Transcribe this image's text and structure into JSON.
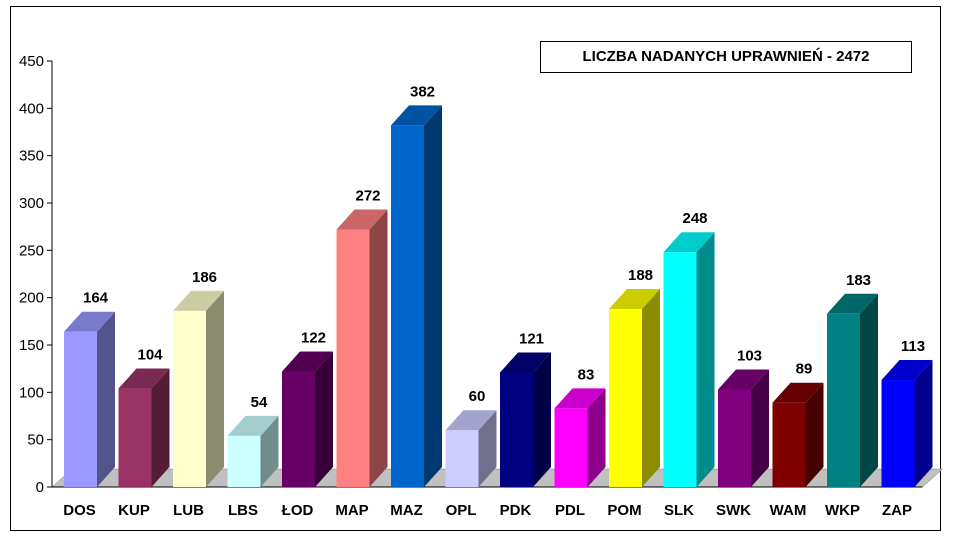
{
  "chart_data": {
    "type": "bar",
    "title": "LICZBA NADANYCH UPRAWNIEŃ - 2472",
    "categories": [
      "DOS",
      "KUP",
      "LUB",
      "LBS",
      "ŁOD",
      "MAP",
      "MAZ",
      "OPL",
      "PDK",
      "PDL",
      "POM",
      "SLK",
      "SWK",
      "WAM",
      "WKP",
      "ZAP"
    ],
    "values": [
      164,
      104,
      186,
      54,
      122,
      272,
      382,
      60,
      121,
      83,
      188,
      248,
      103,
      89,
      183,
      113
    ],
    "colors": [
      "#9999ff",
      "#993366",
      "#ffffcc",
      "#ccffff",
      "#660066",
      "#ff8080",
      "#0066cc",
      "#ccccff",
      "#000080",
      "#ff00ff",
      "#ffff00",
      "#00ffff",
      "#800080",
      "#800000",
      "#008080",
      "#0000ff"
    ],
    "ylim": [
      0,
      450
    ],
    "yticks": [
      0,
      50,
      100,
      150,
      200,
      250,
      300,
      350,
      400,
      450
    ],
    "xlabel": "",
    "ylabel": "",
    "grid": false,
    "legend": "none",
    "data_labels": true
  }
}
